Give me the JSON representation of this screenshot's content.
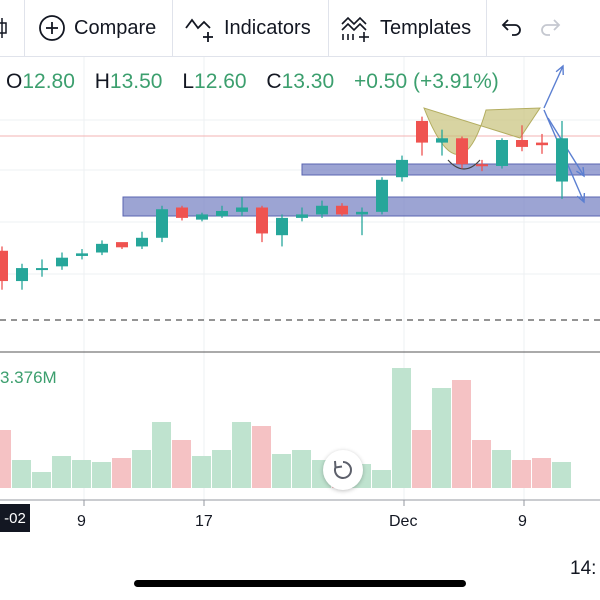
{
  "toolbar": {
    "compare_label": "Compare",
    "indicators_label": "Indicators",
    "templates_label": "Templates"
  },
  "legend": {
    "o_key": "O",
    "o_val": "12.80",
    "h_key": "H",
    "h_val": "13.50",
    "l_key": "L",
    "l_val": "12.60",
    "c_key": "C",
    "c_val": "13.30",
    "change": "+0.50 (+3.91%)"
  },
  "volume_label": "3.376M",
  "date_badge": "-02",
  "x_axis": [
    "9",
    "17",
    "Dec",
    "9"
  ],
  "status_time": "14:",
  "colors": {
    "up": "#26a69a",
    "down": "#ef5350",
    "zone": "#7b86c4",
    "pattern": "#c7c27a"
  },
  "chart_data": {
    "type": "candlestick",
    "candles": [
      {
        "o": 12.0,
        "h": 12.05,
        "l": 11.55,
        "c": 11.65
      },
      {
        "o": 11.65,
        "h": 11.85,
        "l": 11.55,
        "c": 11.8
      },
      {
        "o": 11.78,
        "h": 11.9,
        "l": 11.7,
        "c": 11.8
      },
      {
        "o": 11.82,
        "h": 11.98,
        "l": 11.78,
        "c": 11.92
      },
      {
        "o": 11.94,
        "h": 12.02,
        "l": 11.9,
        "c": 11.97
      },
      {
        "o": 11.98,
        "h": 12.12,
        "l": 11.95,
        "c": 12.08
      },
      {
        "o": 12.1,
        "h": 12.08,
        "l": 12.02,
        "c": 12.04
      },
      {
        "o": 12.05,
        "h": 12.22,
        "l": 12.02,
        "c": 12.15
      },
      {
        "o": 12.15,
        "h": 12.52,
        "l": 12.1,
        "c": 12.48
      },
      {
        "o": 12.5,
        "h": 12.52,
        "l": 12.35,
        "c": 12.38
      },
      {
        "o": 12.36,
        "h": 12.44,
        "l": 12.34,
        "c": 12.42
      },
      {
        "o": 12.4,
        "h": 12.52,
        "l": 12.38,
        "c": 12.46
      },
      {
        "o": 12.45,
        "h": 12.62,
        "l": 12.4,
        "c": 12.5
      },
      {
        "o": 12.5,
        "h": 12.52,
        "l": 12.1,
        "c": 12.2
      },
      {
        "o": 12.18,
        "h": 12.42,
        "l": 12.05,
        "c": 12.38
      },
      {
        "o": 12.38,
        "h": 12.5,
        "l": 12.34,
        "c": 12.42
      },
      {
        "o": 12.42,
        "h": 12.58,
        "l": 12.38,
        "c": 12.52
      },
      {
        "o": 12.52,
        "h": 12.55,
        "l": 12.4,
        "c": 12.42
      },
      {
        "o": 12.42,
        "h": 12.5,
        "l": 12.18,
        "c": 12.45
      },
      {
        "o": 12.45,
        "h": 12.85,
        "l": 12.42,
        "c": 12.82
      },
      {
        "o": 12.85,
        "h": 13.1,
        "l": 12.8,
        "c": 13.05
      },
      {
        "o": 13.5,
        "h": 13.55,
        "l": 13.1,
        "c": 13.25
      },
      {
        "o": 13.25,
        "h": 13.4,
        "l": 13.1,
        "c": 13.3
      },
      {
        "o": 13.3,
        "h": 13.32,
        "l": 12.95,
        "c": 13.0
      },
      {
        "o": 13.0,
        "h": 13.05,
        "l": 12.92,
        "c": 12.98
      },
      {
        "o": 12.98,
        "h": 13.3,
        "l": 12.95,
        "c": 13.28
      },
      {
        "o": 13.28,
        "h": 13.45,
        "l": 13.15,
        "c": 13.2
      },
      {
        "o": 13.25,
        "h": 13.35,
        "l": 13.12,
        "c": 13.22
      },
      {
        "o": 12.8,
        "h": 13.5,
        "l": 12.6,
        "c": 13.3
      }
    ],
    "volume": [
      58,
      28,
      16,
      32,
      28,
      26,
      30,
      38,
      66,
      48,
      32,
      38,
      66,
      62,
      34,
      38,
      28,
      26,
      24,
      18,
      120,
      58,
      100,
      108,
      48,
      38,
      28,
      30,
      26
    ],
    "zones": [
      {
        "from": 12.42,
        "to": 12.52
      },
      {
        "from": 12.85,
        "to": 12.92
      }
    ],
    "pattern": "cup-and-handle",
    "ylim": [
      11.2,
      13.8
    ],
    "dashed_level": 11.2
  }
}
